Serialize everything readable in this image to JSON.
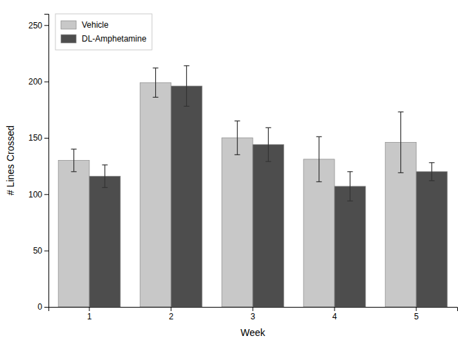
{
  "chart_data": {
    "type": "bar",
    "xlabel": "Week",
    "ylabel": "# Lines Crossed",
    "categories": [
      "1",
      "2",
      "3",
      "4",
      "5"
    ],
    "series": [
      {
        "name": "Vehicle",
        "color": "#c8c8c8",
        "values": [
          130,
          199,
          150,
          131,
          146
        ],
        "errors": [
          10,
          13,
          15,
          20,
          27
        ]
      },
      {
        "name": "DL-Amphetamine",
        "color": "#4d4d4d",
        "values": [
          116,
          196,
          144,
          107,
          120
        ],
        "errors": [
          10,
          18,
          15,
          13,
          8
        ]
      }
    ],
    "ylim": [
      0,
      260
    ],
    "yticks": [
      0,
      50,
      100,
      150,
      200,
      250
    ],
    "grid": false,
    "legend": "upper left"
  }
}
